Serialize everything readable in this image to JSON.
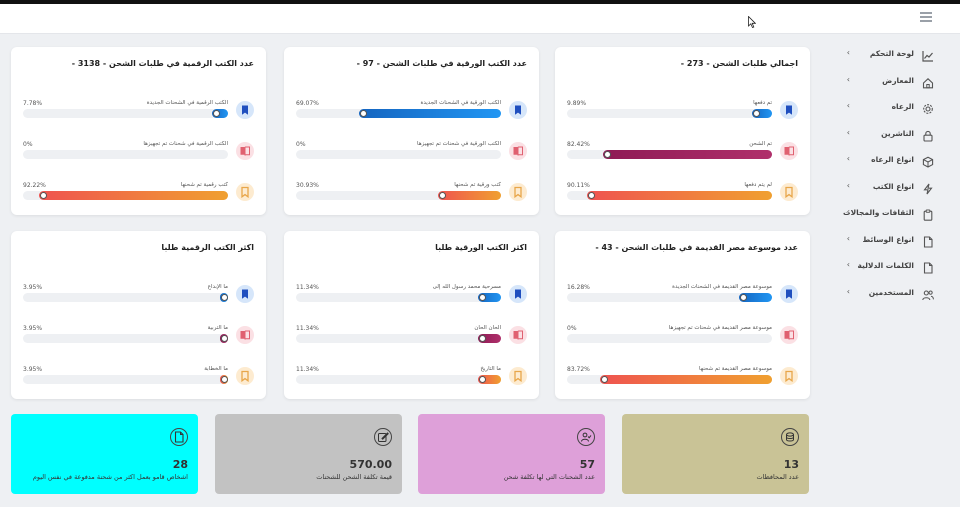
{
  "sidebar": {
    "items": [
      {
        "label": "لوحة التحكم",
        "icon": "chart-line-icon"
      },
      {
        "label": "المعارض",
        "icon": "home-icon"
      },
      {
        "label": "الرعاه",
        "icon": "gear-icon"
      },
      {
        "label": "الناشرين",
        "icon": "lock-icon"
      },
      {
        "label": "انواع الرعاه",
        "icon": "box-icon"
      },
      {
        "label": "انواع الكتب",
        "icon": "lightning-icon"
      },
      {
        "label": "الثقافات والمجالات",
        "icon": "clipboard-icon"
      },
      {
        "label": "انواع الوسائط",
        "icon": "file-icon"
      },
      {
        "label": "الكلمات الدلالية",
        "icon": "file-icon"
      },
      {
        "label": "المستخدمين",
        "icon": "users-icon"
      }
    ]
  },
  "cards": [
    {
      "title": "اجمالي طلبات الشحن - 273 -",
      "rows": [
        {
          "label": "تم دفعها",
          "pct": "9.89%",
          "value": 9.89,
          "icon_type": "bookmark",
          "color": "#1e88e5"
        },
        {
          "label": "تم الشحن",
          "pct": "82.42%",
          "value": 82.42,
          "icon_type": "book",
          "color": "#c2185b"
        },
        {
          "label": "لم يتم دفعها",
          "pct": "90.11%",
          "value": 90.11,
          "icon_type": "bookmark-o",
          "color": "#ef6c44"
        }
      ]
    },
    {
      "title": "عدد الكتب الورقية في طلبات الشحن - 97 -",
      "rows": [
        {
          "label": "الكتب الورقية في الشحنات الجديدة",
          "pct": "69.07%",
          "value": 69.07,
          "icon_type": "bookmark",
          "color": "#1e88e5"
        },
        {
          "label": "الكتب الورقية في شحنات تم تجهيزها",
          "pct": "0%",
          "value": 0,
          "icon_type": "book",
          "color": "#c2185b"
        },
        {
          "label": "كتب ورقية تم شحنها",
          "pct": "30.93%",
          "value": 30.93,
          "icon_type": "bookmark-o",
          "color": "#ef6c44"
        }
      ]
    },
    {
      "title": "عدد الكتب الرقمية في طلبات الشحن - 3138 -",
      "rows": [
        {
          "label": "الكتب الرقمية في الشحنات الجديدة",
          "pct": "7.78%",
          "value": 7.78,
          "icon_type": "bookmark",
          "color": "#1e88e5"
        },
        {
          "label": "الكتب الرقمية في شحنات تم تجهيزها",
          "pct": "0%",
          "value": 0,
          "icon_type": "book",
          "color": "#c2185b"
        },
        {
          "label": "كتب رقمية تم شحنها",
          "pct": "92.22%",
          "value": 92.22,
          "icon_type": "bookmark-o",
          "color": "#ef6c44"
        }
      ]
    },
    {
      "title": "عدد موسوعة مصر القديمة في طلبات الشحن - 43 -",
      "rows": [
        {
          "label": "موسوعة مصر القديمة في الشحنات الجديدة",
          "pct": "16.28%",
          "value": 16.28,
          "icon_type": "bookmark",
          "color": "#1e88e5"
        },
        {
          "label": "موسوعة مصر القديمة في شحنات تم تجهيزها",
          "pct": "0%",
          "value": 0,
          "icon_type": "book",
          "color": "#c2185b"
        },
        {
          "label": "موسوعة مصر القديمة تم شحنها",
          "pct": "83.72%",
          "value": 83.72,
          "icon_type": "bookmark-o",
          "color": "#ef6c44"
        }
      ]
    },
    {
      "title": "اكثر الكتب الورقية طلبا",
      "rows": [
        {
          "label": "مسرحية محمد رسول الله إلى",
          "pct": "11.34%",
          "value": 11.34,
          "icon_type": "bookmark",
          "color": "#1e88e5"
        },
        {
          "label": "الحان الحان",
          "pct": "11.34%",
          "value": 11.34,
          "icon_type": "book",
          "color": "#c2185b"
        },
        {
          "label": "ما التاريخ",
          "pct": "11.34%",
          "value": 11.34,
          "icon_type": "bookmark-o",
          "color": "#ef6c44"
        }
      ]
    },
    {
      "title": "اكثر الكتب الرقمية طلبا",
      "rows": [
        {
          "label": "ما الإبداع",
          "pct": "3.95%",
          "value": 3.95,
          "icon_type": "bookmark",
          "color": "#1e88e5"
        },
        {
          "label": "ما التربية",
          "pct": "3.95%",
          "value": 3.95,
          "icon_type": "book",
          "color": "#c2185b"
        },
        {
          "label": "ما الخطابة",
          "pct": "3.95%",
          "value": 3.95,
          "icon_type": "bookmark-o",
          "color": "#ef6c44"
        }
      ]
    }
  ],
  "stats": [
    {
      "value": "13",
      "label": "عدد المحافظات",
      "color": "#c9c396",
      "icon": "coins-icon"
    },
    {
      "value": "57",
      "label": "عدد الشحنات التي لها تكلفة شحن",
      "color": "#dea0d9",
      "icon": "user-check-icon"
    },
    {
      "value": "570.00",
      "label": "قيمة تكلفة الشحن للشحنات",
      "color": "#c2c2c2",
      "icon": "edit-icon"
    },
    {
      "value": "28",
      "label": "اشخاص قامو بعمل اكثر من شحنة مدفوعة في نفس اليوم",
      "color": "#00ffff",
      "icon": "file-icon"
    }
  ]
}
